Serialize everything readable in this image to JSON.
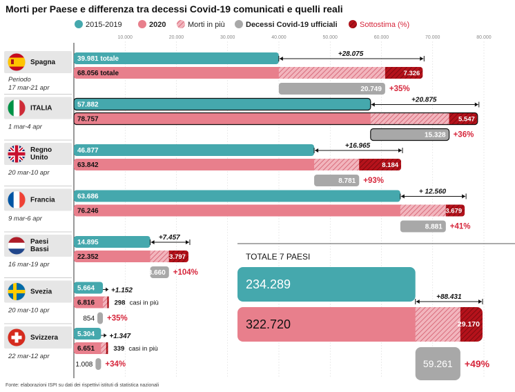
{
  "title": "Morti per Paese e differenza tra decessi Covid-19 comunicati e quelli reali",
  "source": "Fonte: elaborazioni ISPI su dati dei rispettivi istituti di statistica nazionali",
  "colors": {
    "teal": "#45a8ad",
    "pink": "#e87f8c",
    "excess": "#e8a0aa",
    "gray": "#a8a8a8",
    "underestimate": "#b5121b",
    "text": "#222222",
    "red_text": "#d6263b",
    "flag_bg": "#d8d8d8"
  },
  "legend": [
    {
      "label": "2015-2019",
      "icon": "teal-circle"
    },
    {
      "label": "2020",
      "icon": "pink-circle"
    },
    {
      "label": "Morti in più",
      "icon": "hatched-circle"
    },
    {
      "label": "Decessi Covid-19 ufficiali",
      "icon": "gray-circle"
    },
    {
      "label": "Sottostima (%)",
      "icon": "dark-red-hatched-circle"
    }
  ],
  "chart_data": {
    "type": "bar",
    "x_ticks": [
      "10.000",
      "20.000",
      "30.000",
      "40.000",
      "50.000",
      "60.000",
      "70.000",
      "80.000"
    ],
    "xlim": [
      0,
      80000
    ],
    "countries": [
      {
        "name": "Spagna",
        "flag": "spain-flag",
        "period_label": "Periodo",
        "period": "17 mar-21 apr",
        "v2015_2019": 39981,
        "v2015_2019_label": "39.981 totale",
        "v2020": 68056,
        "v2020_label": "68.056 totale",
        "diff_label": "+28.075",
        "under": 7326,
        "under_label": "7.326",
        "official": 20749,
        "official_label": "20.749",
        "pct_label": "+35%"
      },
      {
        "name": "ITALIA",
        "flag": "italy-flag",
        "period": "1 mar-4 apr",
        "v2015_2019": 57882,
        "v2015_2019_label": "57.882",
        "v2020": 78757,
        "v2020_label": "78.757",
        "diff_label": "+20.875",
        "under": 5547,
        "under_label": "5.547",
        "official": 15328,
        "official_label": "15.328",
        "pct_label": "+36%"
      },
      {
        "name": "Regno Unito",
        "flag": "uk-flag",
        "period": "20 mar-10 apr",
        "v2015_2019": 46877,
        "v2015_2019_label": "46.877",
        "v2020": 63842,
        "v2020_label": "63.842",
        "diff_label": "+16.965",
        "under": 8184,
        "under_label": "8.184",
        "official": 8781,
        "official_label": "8.781",
        "pct_label": "+93%"
      },
      {
        "name": "Francia",
        "flag": "france-flag",
        "period": "9 mar-6 apr",
        "v2015_2019": 63686,
        "v2015_2019_label": "63.686",
        "v2020": 76246,
        "v2020_label": "76.246",
        "diff_label": "+ 12.560",
        "under": 3679,
        "under_label": "3.679",
        "official": 8881,
        "official_label": "8.881",
        "pct_label": "+41%"
      },
      {
        "name": "Paesi Bassi",
        "flag": "netherlands-flag",
        "period": "16 mar-19 apr",
        "v2015_2019": 14895,
        "v2015_2019_label": "14.895",
        "v2020": 22352,
        "v2020_label": "22.352",
        "diff_label": "+7.457",
        "under": 3797,
        "under_label": "3.797",
        "official": 3660,
        "official_label": "3.660",
        "pct_label": "+104%"
      },
      {
        "name": "Svezia",
        "flag": "sweden-flag",
        "period": "20 mar-10 apr",
        "v2015_2019": 5664,
        "v2015_2019_label": "5.664",
        "v2020": 6816,
        "v2020_label": "6.816",
        "diff_label": "+1.152",
        "under": 298,
        "under_label": "298",
        "under_note": "casi in più",
        "official": 854,
        "official_label": "854",
        "pct_label": "+35%"
      },
      {
        "name": "Svizzera",
        "flag": "switzerland-flag",
        "period": "22 mar-12 apr",
        "v2015_2019": 5304,
        "v2015_2019_label": "5.304",
        "v2020": 6651,
        "v2020_label": "6.651",
        "diff_label": "+1.347",
        "under": 339,
        "under_label": "339",
        "under_note": "casi in più",
        "official": 1008,
        "official_label": "1.008",
        "pct_label": "+34%"
      }
    ],
    "total": {
      "title": "TOTALE 7 PAESI",
      "v2015_2019": 234289,
      "v2015_2019_label": "234.289",
      "v2020": 322720,
      "v2020_label": "322.720",
      "diff_label": "+88.431",
      "under": 29170,
      "under_label": "29.170",
      "official": 59261,
      "official_label": "59.261",
      "pct_label": "+49%"
    }
  }
}
